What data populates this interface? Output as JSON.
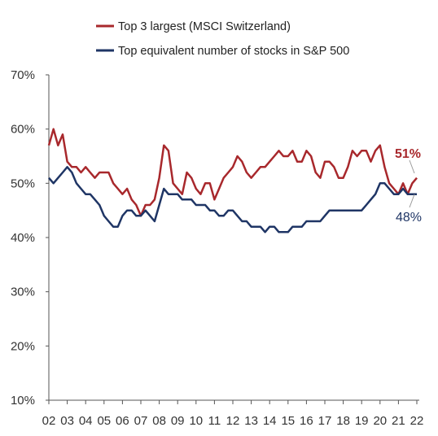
{
  "chart_data": {
    "type": "line",
    "x": [
      2002.0,
      2002.25,
      2002.5,
      2002.75,
      2003.0,
      2003.25,
      2003.5,
      2003.75,
      2004.0,
      2004.25,
      2004.5,
      2004.75,
      2005.0,
      2005.25,
      2005.5,
      2005.75,
      2006.0,
      2006.25,
      2006.5,
      2006.75,
      2007.0,
      2007.25,
      2007.5,
      2007.75,
      2008.0,
      2008.25,
      2008.5,
      2008.75,
      2009.0,
      2009.25,
      2009.5,
      2009.75,
      2010.0,
      2010.25,
      2010.5,
      2010.75,
      2011.0,
      2011.25,
      2011.5,
      2011.75,
      2012.0,
      2012.25,
      2012.5,
      2012.75,
      2013.0,
      2013.25,
      2013.5,
      2013.75,
      2014.0,
      2014.25,
      2014.5,
      2014.75,
      2015.0,
      2015.25,
      2015.5,
      2015.75,
      2016.0,
      2016.25,
      2016.5,
      2016.75,
      2017.0,
      2017.25,
      2017.5,
      2017.75,
      2018.0,
      2018.25,
      2018.5,
      2018.75,
      2019.0,
      2019.25,
      2019.5,
      2019.75,
      2020.0,
      2020.25,
      2020.5,
      2020.75,
      2021.0,
      2021.25,
      2021.5,
      2021.75,
      2022.0
    ],
    "series": [
      {
        "name": "Top 3 largest (MSCI Switzerland)",
        "color": "#a8282c",
        "values": [
          57,
          60,
          57,
          59,
          54,
          53,
          53,
          52,
          53,
          52,
          51,
          52,
          52,
          52,
          50,
          49,
          48,
          49,
          47,
          46,
          44,
          46,
          46,
          47,
          51,
          57,
          56,
          50,
          49,
          48,
          52,
          51,
          49,
          48,
          50,
          50,
          47,
          49,
          51,
          52,
          53,
          55,
          54,
          52,
          51,
          52,
          53,
          53,
          54,
          55,
          56,
          55,
          55,
          56,
          54,
          54,
          56,
          55,
          52,
          51,
          54,
          54,
          53,
          51,
          51,
          53,
          56,
          55,
          56,
          56,
          54,
          56,
          57,
          53,
          50,
          49,
          48,
          50,
          48,
          50,
          51
        ]
      },
      {
        "name": "Top equivalent number of stocks in S&P 500",
        "color": "#1f3565",
        "values": [
          51,
          50,
          51,
          52,
          53,
          52,
          50,
          49,
          48,
          48,
          47,
          46,
          44,
          43,
          42,
          42,
          44,
          45,
          45,
          44,
          44,
          45,
          44,
          43,
          46,
          49,
          48,
          48,
          48,
          47,
          47,
          47,
          46,
          46,
          46,
          45,
          45,
          44,
          44,
          45,
          45,
          44,
          43,
          43,
          42,
          42,
          42,
          41,
          42,
          42,
          41,
          41,
          41,
          42,
          42,
          42,
          43,
          43,
          43,
          43,
          44,
          45,
          45,
          45,
          45,
          45,
          45,
          45,
          45,
          46,
          47,
          48,
          50,
          50,
          49,
          48,
          48,
          49,
          48,
          48,
          48
        ]
      }
    ],
    "xticks": [
      "02",
      "03",
      "04",
      "05",
      "06",
      "07",
      "08",
      "09",
      "10",
      "11",
      "12",
      "13",
      "14",
      "15",
      "16",
      "17",
      "18",
      "19",
      "20",
      "21",
      "22"
    ],
    "yticks": [
      "10%",
      "20%",
      "30%",
      "40%",
      "50%",
      "60%",
      "70%"
    ],
    "ylim": [
      10,
      70
    ],
    "xlim": [
      2002,
      2022
    ],
    "end_labels": [
      "51%",
      "48%"
    ],
    "grid": false,
    "legend_position": "top-left"
  }
}
